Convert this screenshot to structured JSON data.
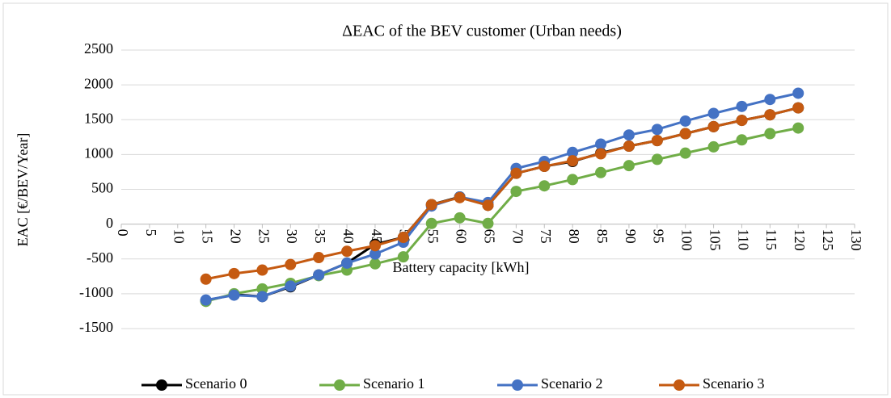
{
  "chart_data": {
    "type": "line",
    "title": "ΔEAC of the BEV customer (Urban needs)",
    "x_label": "Battery capacity [kWh]",
    "y_label": "EAC [€/BEV/Year]",
    "x": [
      15,
      20,
      25,
      30,
      35,
      40,
      45,
      50,
      55,
      60,
      65,
      70,
      75,
      80,
      85,
      90,
      95,
      100,
      105,
      110,
      115,
      120
    ],
    "series": [
      {
        "name": "Scenario 0",
        "color": "#000000",
        "values": [
          -1100,
          -1010,
          -1040,
          -900,
          -730,
          -560,
          -290,
          -190,
          280,
          390,
          270,
          730,
          830,
          900,
          1020,
          1120,
          1200,
          1300,
          1400,
          1490,
          1570,
          1670
        ]
      },
      {
        "name": "Scenario 1",
        "color": "#70ad47",
        "values": [
          -1110,
          -1000,
          -930,
          -850,
          -740,
          -660,
          -570,
          -470,
          10,
          90,
          10,
          470,
          550,
          640,
          740,
          840,
          930,
          1020,
          1110,
          1210,
          1300,
          1380
        ]
      },
      {
        "name": "Scenario 2",
        "color": "#4472c4",
        "values": [
          -1090,
          -1020,
          -1040,
          -890,
          -730,
          -560,
          -430,
          -260,
          260,
          390,
          310,
          800,
          900,
          1030,
          1150,
          1280,
          1360,
          1480,
          1590,
          1690,
          1790,
          1880
        ]
      },
      {
        "name": "Scenario 3",
        "color": "#c55a11",
        "values": [
          -790,
          -710,
          -660,
          -580,
          -480,
          -390,
          -310,
          -190,
          280,
          380,
          270,
          730,
          830,
          910,
          1010,
          1120,
          1200,
          1300,
          1400,
          1490,
          1570,
          1670
        ]
      }
    ],
    "xlim": [
      0,
      130
    ],
    "xticks": [
      0,
      5,
      10,
      15,
      20,
      25,
      30,
      35,
      40,
      45,
      50,
      55,
      60,
      65,
      70,
      75,
      80,
      85,
      90,
      95,
      100,
      105,
      110,
      115,
      120,
      125,
      130
    ],
    "ylim": [
      -1500,
      2500
    ],
    "yticks": [
      -1500,
      -1000,
      -500,
      0,
      500,
      1000,
      1500,
      2000,
      2500
    ],
    "grid": true,
    "legend": "bottom"
  }
}
